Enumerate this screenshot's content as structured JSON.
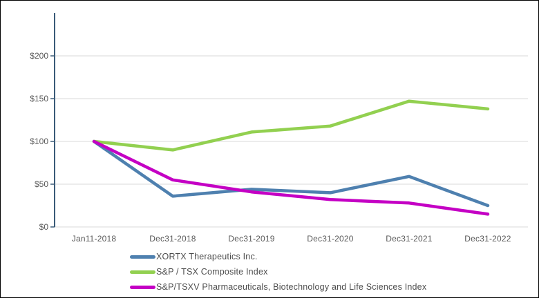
{
  "chart_data": {
    "type": "line",
    "title": "",
    "xlabel": "",
    "ylabel": "",
    "x_labels": [
      "Jan11-2018",
      "Dec31-2018",
      "Dec31-2019",
      "Dec31-2020",
      "Dec31-2021",
      "Dec31-2022"
    ],
    "y_tick_values": [
      0,
      50,
      100,
      150,
      200
    ],
    "y_tick_labels": [
      "$0",
      "$50",
      "$100",
      "$150",
      "$200"
    ],
    "ylim": [
      0,
      250
    ],
    "grid": true,
    "legend_position": "bottom-left",
    "series": [
      {
        "name": "XORTX Therapeutics Inc.",
        "color": "#4E80AF",
        "values": [
          100,
          36,
          44,
          40,
          59,
          25
        ]
      },
      {
        "name": "S&P / TSX Composite Index",
        "color": "#92D050",
        "values": [
          100,
          90,
          111,
          118,
          147,
          138
        ]
      },
      {
        "name": "S&P/TSXV Pharmaceuticals, Biotechnology and Life Sciences Index",
        "color": "#C400C4",
        "values": [
          100,
          55,
          41,
          32,
          28,
          15
        ]
      }
    ],
    "colors": {
      "axis": "#3A5A78",
      "grid": "#D9D9D9",
      "axis_label": "#595959",
      "legend_text": "#4D4D4D",
      "background": "#FFFFFF",
      "border": "#000000"
    }
  }
}
